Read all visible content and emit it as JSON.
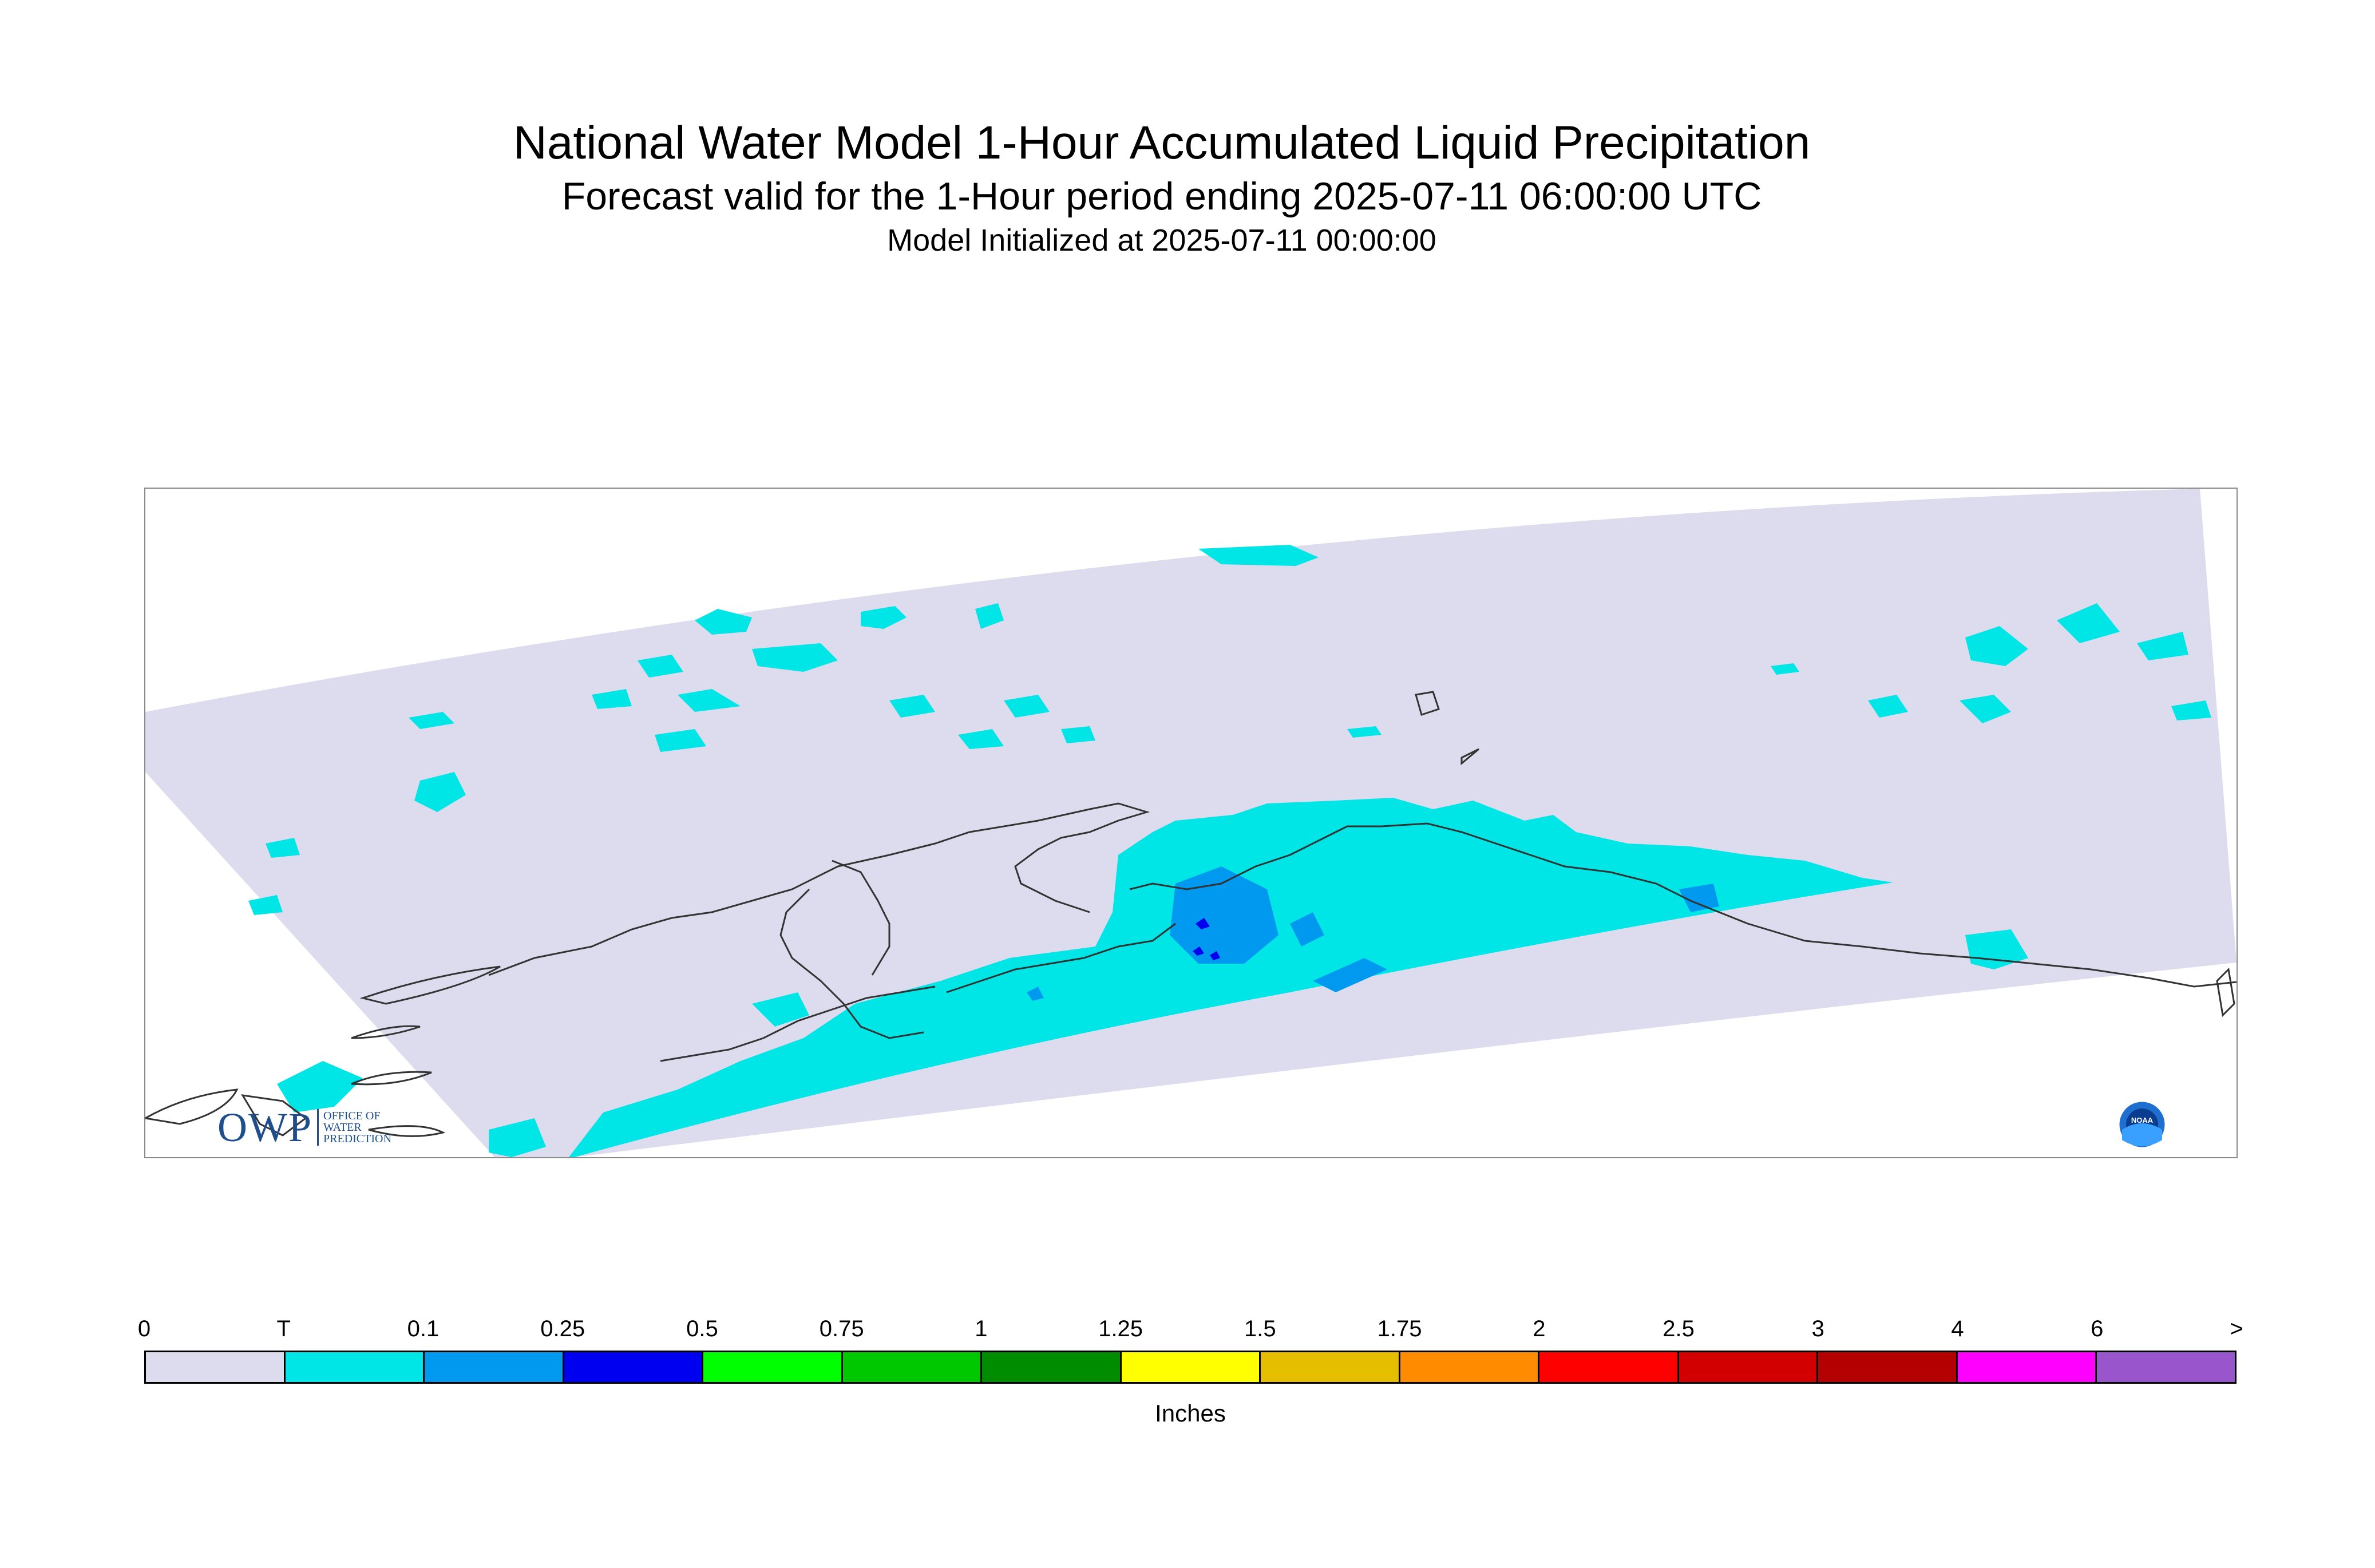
{
  "title": {
    "line1": "National Water Model 1-Hour Accumulated Liquid Precipitation",
    "line2": "Forecast valid for the 1-Hour period ending 2025-07-11 06:00:00 UTC",
    "line3": "Model Initialized at 2025-07-11 00:00:00"
  },
  "logos": {
    "owp_big": "OWP",
    "owp_small": [
      "OFFICE OF",
      "WATER",
      "PREDICTION"
    ],
    "noaa": "NOAA"
  },
  "legend": {
    "unit": "Inches",
    "ticks": [
      "0",
      "T",
      "0.1",
      "0.25",
      "0.5",
      "0.75",
      "1",
      "1.25",
      "1.5",
      "1.75",
      "2",
      "2.5",
      "3",
      "4",
      "6",
      ">"
    ],
    "colors": [
      "#dcdcee",
      "#00e5e5",
      "#0099f0",
      "#0000f0",
      "#00ff00",
      "#00c800",
      "#008c00",
      "#ffff00",
      "#e5be00",
      "#ff8c00",
      "#ff0000",
      "#d20000",
      "#b40000",
      "#ff00ff",
      "#9955cc"
    ]
  },
  "map": {
    "domain_color": "#dcdcee",
    "trace_color": "#00e5e5",
    "light_color": "#0099f0",
    "moderate_color": "#0000f0",
    "coast_color": "#333333"
  }
}
